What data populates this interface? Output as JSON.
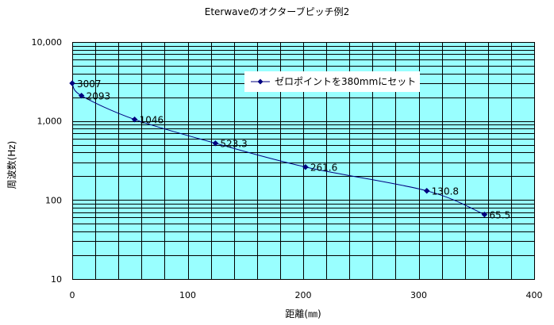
{
  "chart_data": {
    "type": "scatter",
    "title": "Eterwaveのオクターブピッチ例2",
    "xlabel": "距離(㎜)",
    "ylabel": "周波数(Hz)",
    "xlim": [
      0,
      400
    ],
    "ylim": [
      10,
      10000
    ],
    "yscale": "log",
    "grid": true,
    "legend_position": "top-right",
    "colors": {
      "plot_background": "#99FFFF",
      "series": "#000080",
      "grid": "#000000"
    },
    "x_ticks": [
      {
        "value": 0,
        "label": "0"
      },
      {
        "value": 100,
        "label": "100"
      },
      {
        "value": 200,
        "label": "200"
      },
      {
        "value": 300,
        "label": "300"
      },
      {
        "value": 400,
        "label": "400"
      }
    ],
    "y_ticks": [
      {
        "value": 10,
        "label": "10"
      },
      {
        "value": 100,
        "label": "100"
      },
      {
        "value": 1000,
        "label": "1,000"
      },
      {
        "value": 10000,
        "label": "10,000"
      }
    ],
    "series": [
      {
        "name": "ゼロポイントを380mmにセット",
        "points": [
          {
            "x": 0,
            "y": 3007,
            "label": "3007"
          },
          {
            "x": 8,
            "y": 2093,
            "label": "2093"
          },
          {
            "x": 54,
            "y": 1046,
            "label": "1046"
          },
          {
            "x": 124,
            "y": 523.3,
            "label": "523.3"
          },
          {
            "x": 202,
            "y": 261.6,
            "label": "261.6"
          },
          {
            "x": 307,
            "y": 130.8,
            "label": "130.8"
          },
          {
            "x": 357,
            "y": 65.5,
            "label": "65.5"
          }
        ]
      }
    ]
  }
}
